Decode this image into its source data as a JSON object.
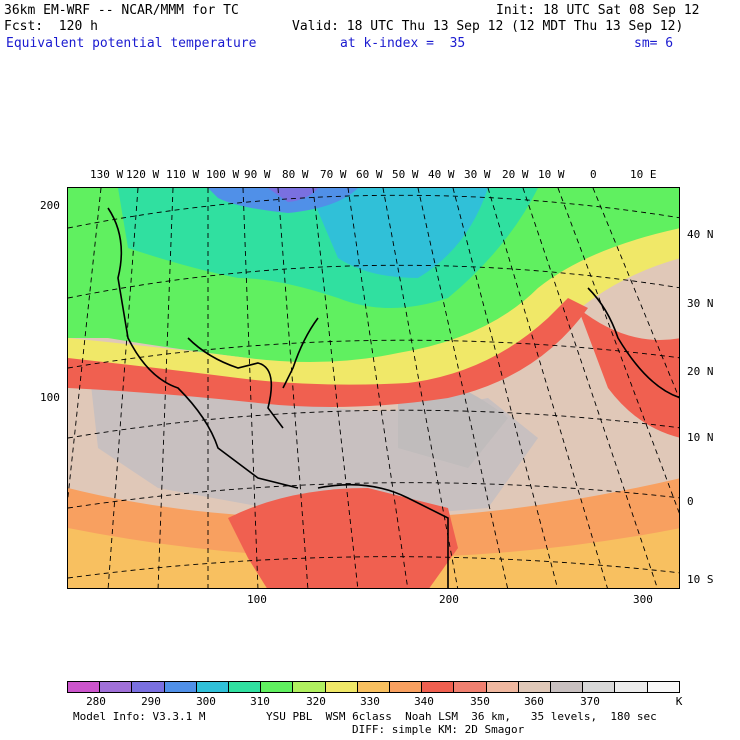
{
  "header": {
    "model_title": "36km EM-WRF -- NCAR/MMM for TC",
    "init": "Init: 18 UTC Sat 08 Sep 12",
    "forecast": "Fcst:  120 h",
    "valid": "Valid: 18 UTC Thu 13 Sep 12 (12 MDT Thu 13 Sep 12)",
    "field": "Equivalent potential temperature",
    "level": "at k-index =  35",
    "smoothing": "sm= 6"
  },
  "map": {
    "lon_labels": [
      "130 W",
      "120 W",
      "110 W",
      "100 W",
      "90 W",
      "80 W",
      "70 W",
      "60 W",
      "50 W",
      "40 W",
      "30 W",
      "20 W",
      "10 W",
      "0",
      "10 E"
    ],
    "lat_labels": [
      "40 N",
      "30 N",
      "20 N",
      "10 N",
      "0",
      "10 S"
    ],
    "grid_y_labels": [
      "200",
      "100"
    ],
    "grid_x_labels": [
      "100",
      "200",
      "300"
    ],
    "background_color": "#dcc8b8"
  },
  "colorbar": {
    "colors": [
      "#cc55cc",
      "#a070d8",
      "#7a70e0",
      "#5090e8",
      "#30c0d8",
      "#30e0a0",
      "#60f060",
      "#b0f060",
      "#f0e868",
      "#f8c060",
      "#f8a060",
      "#f06050",
      "#f08070",
      "#f0b8a0",
      "#e0c8b8",
      "#c8c0c0",
      "#d8d8d8",
      "#ececec",
      "#f8f8f8"
    ],
    "labels": [
      "280",
      "290",
      "300",
      "310",
      "320",
      "330",
      "340",
      "350",
      "360",
      "370",
      "K"
    ]
  },
  "footer": {
    "model_info": "Model Info: V3.3.1 M",
    "physics_line1": "YSU PBL  WSM 6class  Noah LSM  36 km,   35 levels,  180 sec",
    "physics_line2": "DIFF: simple KM: 2D Smagor"
  }
}
